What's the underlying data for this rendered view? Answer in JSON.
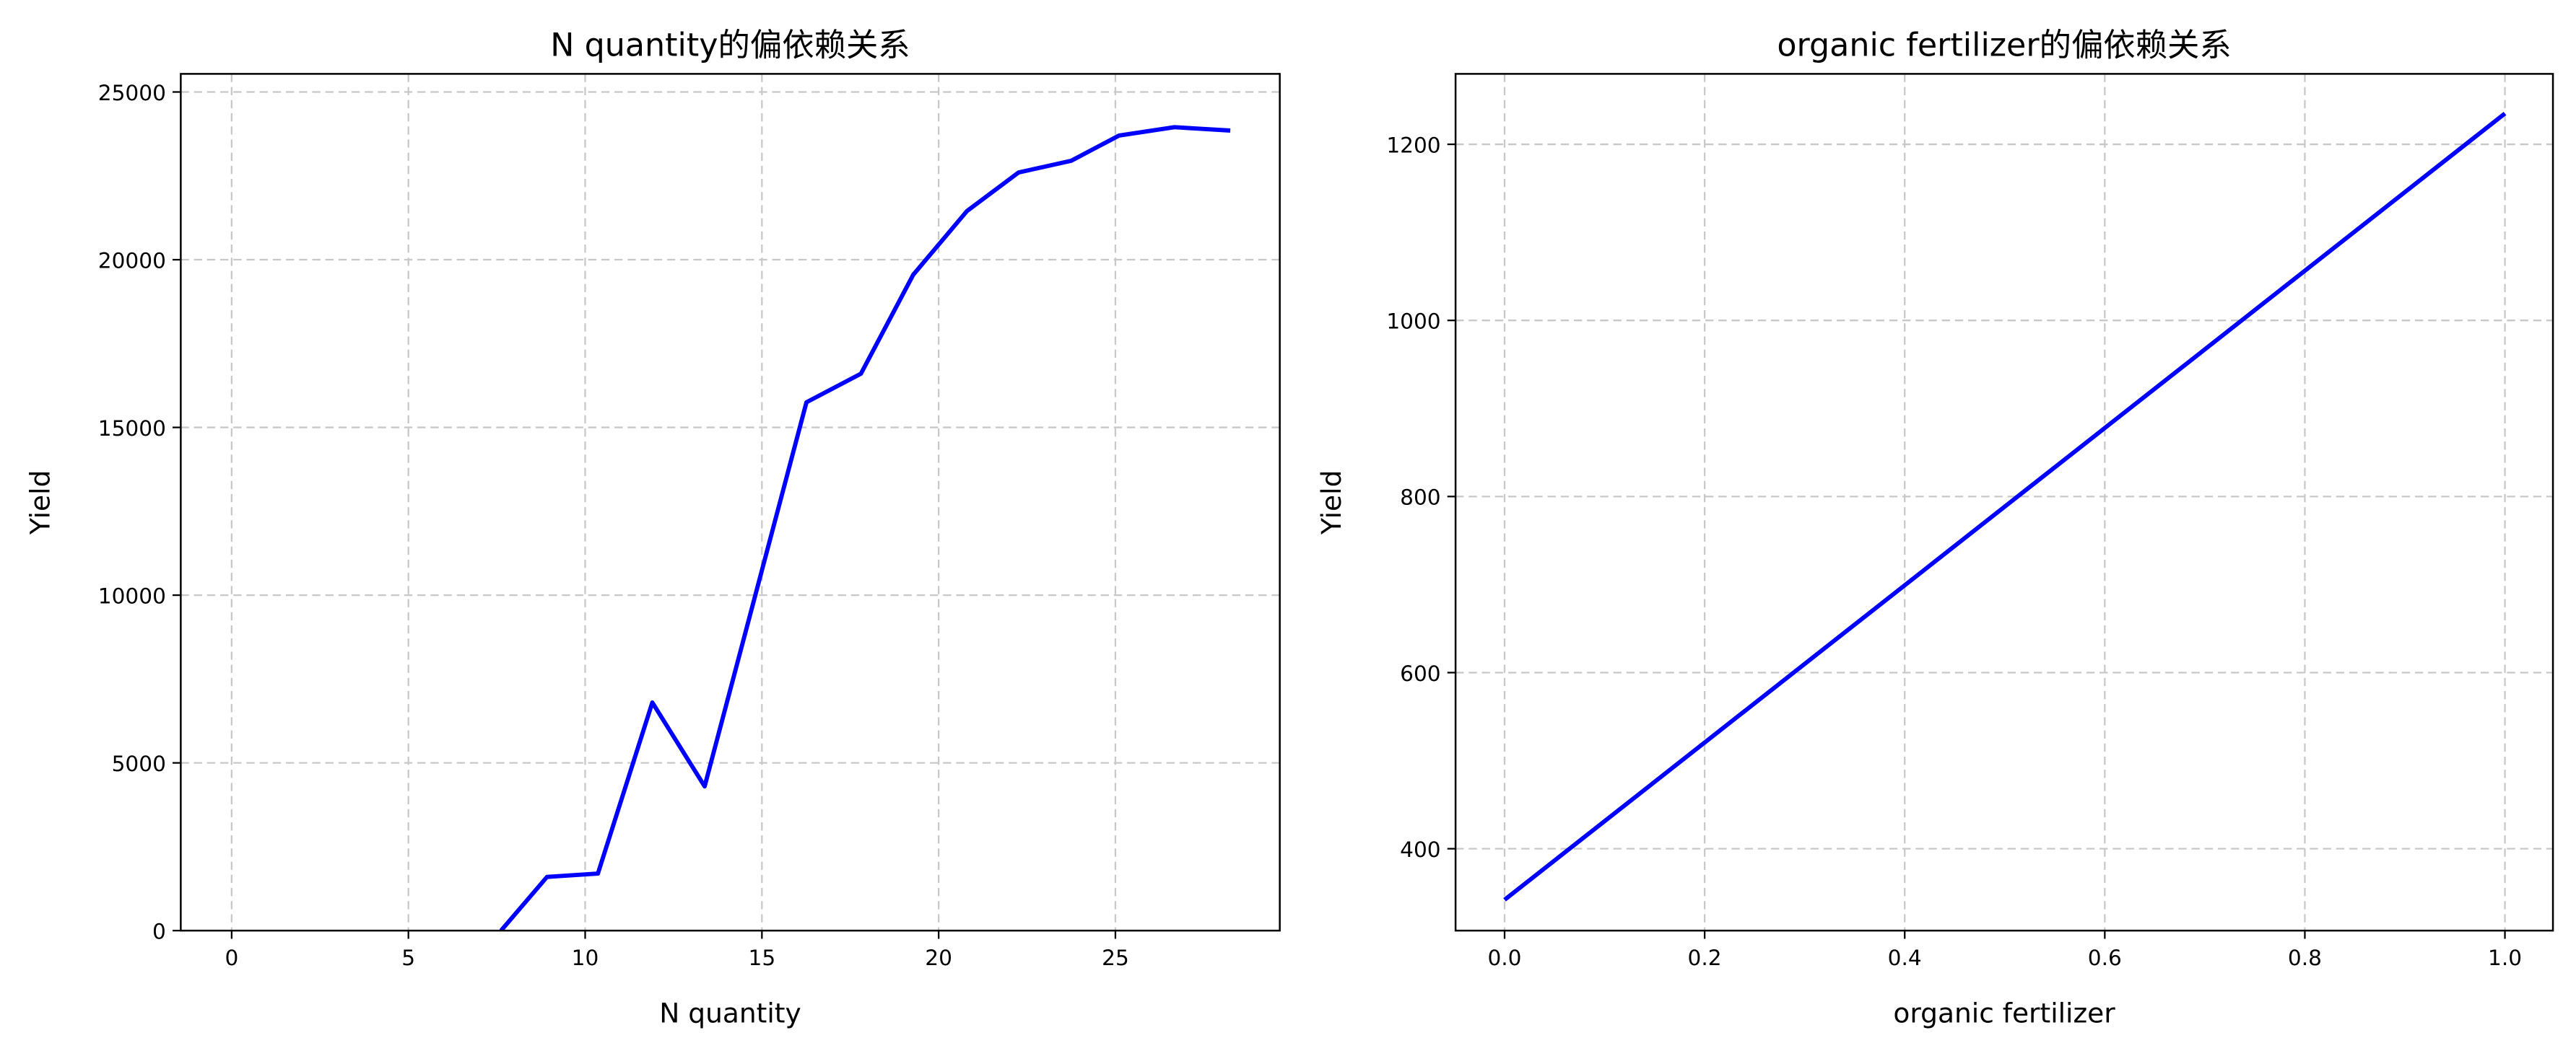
{
  "chart_data": [
    {
      "type": "line",
      "title": "N quantity的偏依赖关系",
      "x_label": "N quantity",
      "y_label": "Yield",
      "series": [
        {
          "color": "#0000ff",
          "x": [
            7.62,
            8.92,
            10.36,
            11.9,
            13.38,
            16.26,
            17.8,
            19.28,
            20.8,
            22.26,
            23.75,
            25.1,
            26.67,
            28.25
          ],
          "values": [
            0,
            1600,
            1700,
            6800,
            4300,
            15750,
            16600,
            19550,
            21450,
            22600,
            22950,
            23700,
            23950,
            23850
          ]
        }
      ],
      "xlim": [
        -1.44,
        29.65
      ],
      "ylim": [
        0,
        25540
      ],
      "xticks": [
        0,
        5,
        10,
        15,
        20,
        25
      ],
      "yticks": [
        0,
        5000,
        10000,
        15000,
        20000,
        25000
      ],
      "grid": true
    },
    {
      "type": "line",
      "title": "organic fertilizer的偏依赖关系",
      "x_label": "organic fertilizer",
      "y_label": "Yield",
      "series": [
        {
          "color": "#0000ff",
          "x": [
            0,
            1
          ],
          "values": [
            342,
            1235
          ]
        }
      ],
      "xlim": [
        -0.049,
        1.048
      ],
      "ylim": [
        307,
        1280
      ],
      "xticks": [
        {
          "value": 0,
          "label": "0.0"
        },
        0.2,
        0.4,
        0.6,
        0.8,
        {
          "value": 1,
          "label": "1.0"
        }
      ],
      "yticks": [
        400,
        600,
        800,
        1000,
        1200
      ],
      "grid": true
    }
  ]
}
